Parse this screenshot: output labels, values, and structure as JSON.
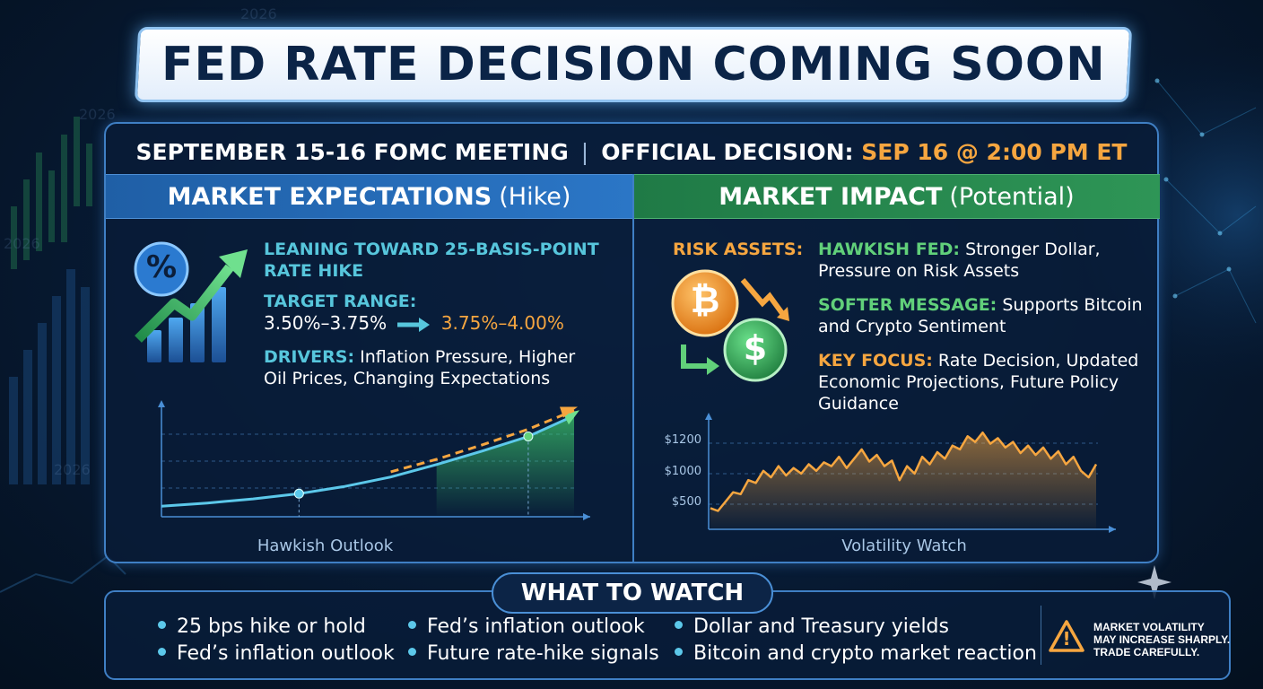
{
  "title": "FED RATE DECISION COMING SOON",
  "meeting": {
    "left": "SEPTEMBER 15-16 FOMC MEETING",
    "separator": "|",
    "decision_label": "OFFICIAL DECISION:",
    "decision_time": "SEP 16 @ 2:00 PM ET"
  },
  "background_labels": [
    "2026",
    "2026",
    "2026",
    "2026"
  ],
  "expectations": {
    "heading": "MARKET EXPECTATIONS",
    "heading_sub": "(Hike)",
    "icon_symbol": "%",
    "lean_line1": "LEANING TOWARD 25-BASIS-POINT",
    "lean_line2": "RATE HIKE",
    "target_label": "TARGET RANGE:",
    "target_from": "3.50%–3.75%",
    "target_to": "3.75%–4.00%",
    "drivers_label": "DRIVERS:",
    "drivers_line1": "Inflation Pressure, Higher",
    "drivers_line2": "Oil Prices, Changing Expectations",
    "chart_caption": "Hawkish Outlook"
  },
  "impact": {
    "heading": "MARKET IMPACT",
    "heading_sub": "(Potential)",
    "risk_label": "RISK ASSETS:",
    "hawkish_label": "HAWKISH FED:",
    "hawkish_line1": "Stronger Dollar,",
    "hawkish_line2": "Pressure on Risk Assets",
    "softer_label": "SOFTER MESSAGE:",
    "softer_line1": "Supports Bitcoin",
    "softer_line2": "and Crypto Sentiment",
    "focus_label": "KEY FOCUS:",
    "focus_line1": "Rate Decision, Updated",
    "focus_line2": "Economic Projections, Future Policy",
    "focus_line3": "Guidance",
    "bitcoin_symbol": "₿",
    "dollar_symbol": "$",
    "chart_caption": "Volatility Watch"
  },
  "chart_data": [
    {
      "type": "line",
      "title": "",
      "xlabel": "Hawkish Outlook",
      "ylabel": "",
      "series": [
        {
          "values": [
            0.05,
            0.08,
            0.12,
            0.17,
            0.24,
            0.33,
            0.45,
            0.58,
            0.72,
            0.92
          ]
        },
        {
          "values": [
            null,
            null,
            null,
            null,
            null,
            0.38,
            0.5,
            0.64,
            0.79,
            0.97
          ]
        }
      ],
      "grid": true
    },
    {
      "type": "area",
      "title": "",
      "xlabel": "Volatility Watch",
      "ylabel": "",
      "y_ticks": [
        "$1200",
        "$1000",
        "$500"
      ],
      "series": [
        {
          "values": [
            0.15,
            0.12,
            0.22,
            0.32,
            0.3,
            0.45,
            0.42,
            0.55,
            0.48,
            0.6,
            0.5,
            0.58,
            0.52,
            0.62,
            0.55,
            0.64,
            0.6,
            0.7,
            0.58,
            0.68,
            0.78,
            0.65,
            0.72,
            0.6,
            0.66,
            0.45,
            0.6,
            0.52,
            0.7,
            0.62,
            0.75,
            0.68,
            0.82,
            0.78,
            0.92,
            0.86,
            0.96,
            0.84,
            0.9,
            0.8,
            0.86,
            0.74,
            0.82,
            0.72,
            0.8,
            0.68,
            0.76,
            0.62,
            0.7,
            0.55,
            0.48,
            0.62
          ]
        }
      ],
      "grid": true,
      "color": "#f6a640"
    }
  ],
  "watch": {
    "heading": "WHAT TO WATCH",
    "items": [
      "25 bps hike or hold",
      "Fed’s inflation outlook",
      "Fed’s inflation outlook",
      "Future rate-hike signals",
      "Dollar and Treasury yields",
      "Bitcoin and crypto market reaction"
    ],
    "warning_line1": "MARKET VOLATILITY",
    "warning_line2": "MAY INCREASE SHARPLY.",
    "warning_line3": "TRADE CAREFULLY.",
    "warning_symbol": "!"
  },
  "colors": {
    "orange": "#f6a640",
    "green": "#61d07a",
    "cyan": "#57c6dc",
    "blue_header": "#2b76c6",
    "green_header": "#2e9556"
  }
}
